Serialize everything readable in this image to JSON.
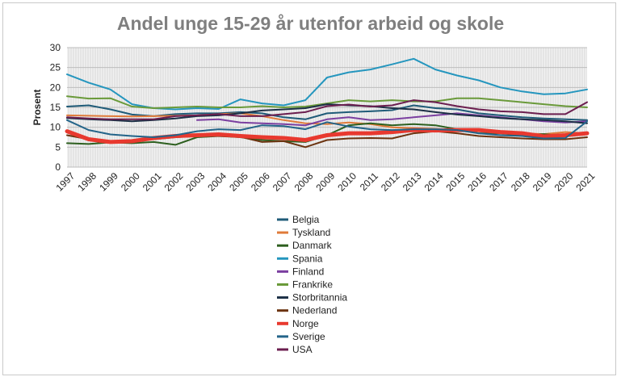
{
  "chart_data": {
    "type": "line",
    "title": "Andel unge 15-29 år utenfor arbeid og skole",
    "ylabel": "Prosent",
    "xlabel": "",
    "ylim": [
      0,
      30
    ],
    "yticks": [
      0,
      5,
      10,
      15,
      20,
      25,
      30
    ],
    "grid": true,
    "legend_position": "bottom",
    "x": [
      "1997",
      "1998",
      "1999",
      "2000",
      "2001",
      "2002",
      "2003",
      "2004",
      "2005",
      "2006",
      "2007",
      "2008",
      "2009",
      "2010",
      "2011",
      "2012",
      "2013",
      "2014",
      "2015",
      "2016",
      "2017",
      "2018",
      "2019",
      "2020",
      "2021"
    ],
    "series": [
      {
        "name": "Belgia",
        "color": "#1f5b78",
        "width": 2,
        "values": [
          15.2,
          15.5,
          14.5,
          13.2,
          12.8,
          13.3,
          13.5,
          13.5,
          13.8,
          13.5,
          12.5,
          12.0,
          13.5,
          13.8,
          14.0,
          14.3,
          15.5,
          14.8,
          14.5,
          13.5,
          13.0,
          12.5,
          12.2,
          12.0,
          11.8
        ]
      },
      {
        "name": "Tyskland",
        "color": "#e07b3a",
        "width": 2,
        "values": [
          13.0,
          12.9,
          12.8,
          12.7,
          12.8,
          12.9,
          13.0,
          13.3,
          13.5,
          12.8,
          11.8,
          11.0,
          10.8,
          11.2,
          10.8,
          10.0,
          9.8,
          9.6,
          9.3,
          9.0,
          8.8,
          8.5,
          8.3,
          8.8,
          8.5
        ]
      },
      {
        "name": "Danmark",
        "color": "#2d5f1f",
        "width": 2,
        "values": [
          6.0,
          5.8,
          6.2,
          6.0,
          6.3,
          5.6,
          7.5,
          7.8,
          7.5,
          6.8,
          6.5,
          6.3,
          8.0,
          10.5,
          11.0,
          10.5,
          10.8,
          10.5,
          9.5,
          8.5,
          8.5,
          8.0,
          8.3,
          7.8,
          8.5
        ]
      },
      {
        "name": "Spania",
        "color": "#2596be",
        "width": 2,
        "values": [
          23.3,
          21.2,
          19.5,
          15.8,
          14.8,
          14.5,
          14.8,
          14.6,
          17.0,
          16.0,
          15.5,
          16.8,
          22.5,
          23.8,
          24.5,
          25.8,
          27.2,
          24.5,
          23.0,
          21.8,
          20.0,
          19.0,
          18.3,
          18.5,
          19.5
        ]
      },
      {
        "name": "Finland",
        "color": "#7b3fa0",
        "width": 2,
        "values": [
          null,
          null,
          null,
          null,
          null,
          null,
          11.8,
          12.0,
          11.2,
          11.0,
          10.8,
          10.5,
          12.0,
          12.5,
          11.8,
          12.0,
          12.5,
          13.0,
          13.5,
          13.0,
          12.5,
          12.0,
          11.5,
          11.2,
          11.5
        ]
      },
      {
        "name": "Frankrike",
        "color": "#6a9a3a",
        "width": 2,
        "values": [
          17.8,
          17.2,
          17.3,
          15.2,
          14.8,
          15.0,
          15.2,
          15.0,
          15.0,
          15.3,
          15.0,
          15.2,
          16.0,
          16.8,
          16.5,
          16.8,
          16.5,
          16.5,
          17.3,
          17.3,
          16.8,
          16.3,
          15.8,
          15.3,
          15.0
        ]
      },
      {
        "name": "Storbritannia",
        "color": "#1b2f45",
        "width": 2,
        "values": [
          12.3,
          12.0,
          11.8,
          11.5,
          11.8,
          12.2,
          12.8,
          13.0,
          13.5,
          14.2,
          14.5,
          14.8,
          15.8,
          15.5,
          15.3,
          14.8,
          14.5,
          13.8,
          13.2,
          12.8,
          12.3,
          12.0,
          11.8,
          11.5,
          11.0
        ]
      },
      {
        "name": "Nederland",
        "color": "#6b3310",
        "width": 2,
        "values": [
          8.0,
          7.0,
          6.5,
          6.8,
          7.0,
          7.5,
          7.8,
          7.8,
          7.6,
          6.3,
          6.5,
          5.0,
          6.8,
          7.2,
          7.3,
          7.2,
          8.5,
          9.0,
          8.5,
          7.8,
          7.5,
          7.2,
          7.0,
          7.0,
          7.5
        ]
      },
      {
        "name": "Norge",
        "color": "#e8392f",
        "width": 5,
        "values": [
          9.0,
          7.0,
          6.3,
          6.5,
          7.3,
          7.8,
          8.0,
          8.2,
          7.8,
          7.5,
          7.3,
          6.8,
          8.0,
          8.5,
          8.5,
          8.8,
          9.3,
          9.2,
          9.3,
          9.3,
          8.8,
          8.5,
          7.7,
          8.0,
          8.5
        ]
      },
      {
        "name": "Sverige",
        "color": "#236489",
        "width": 2,
        "values": [
          11.8,
          9.3,
          8.2,
          7.8,
          7.5,
          8.0,
          9.0,
          9.5,
          9.3,
          10.5,
          10.3,
          9.5,
          11.3,
          10.2,
          9.5,
          9.3,
          9.5,
          9.5,
          9.3,
          8.5,
          8.0,
          7.8,
          7.2,
          7.3,
          11.5
        ]
      },
      {
        "name": "USA",
        "color": "#6b1e4f",
        "width": 2,
        "values": [
          12.5,
          12.2,
          12.0,
          12.0,
          12.0,
          12.8,
          13.0,
          13.3,
          12.8,
          12.8,
          13.3,
          13.8,
          15.3,
          15.7,
          15.2,
          15.5,
          16.8,
          16.3,
          15.3,
          14.5,
          14.0,
          13.8,
          13.3,
          13.3,
          16.3
        ]
      }
    ]
  }
}
